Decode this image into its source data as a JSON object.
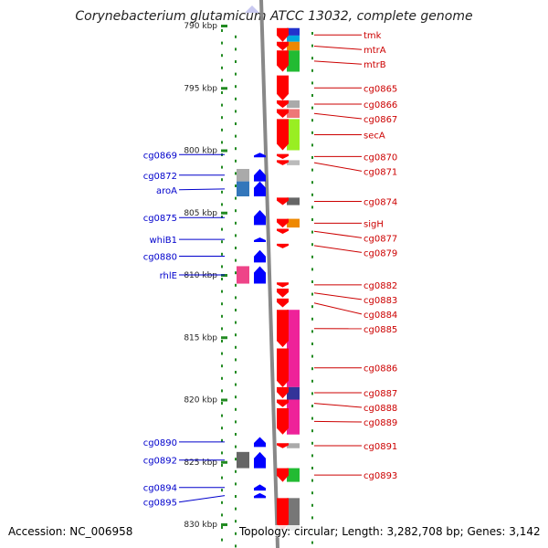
{
  "title": "Corynebacterium glutamicum ATCC 13032, complete genome",
  "footer": {
    "accession": "Accession: NC_006958",
    "summary": "Topology: circular; Length: 3,282,708 bp; Genes: 3,142"
  },
  "scale": {
    "unit": "kbp",
    "ticks": [
      {
        "label": "790 kbp",
        "kbp": 790
      },
      {
        "label": "795 kbp",
        "kbp": 795
      },
      {
        "label": "800 kbp",
        "kbp": 800
      },
      {
        "label": "805 kbp",
        "kbp": 805
      },
      {
        "label": "810 kbp",
        "kbp": 810
      },
      {
        "label": "815 kbp",
        "kbp": 815
      },
      {
        "label": "820 kbp",
        "kbp": 820
      },
      {
        "label": "825 kbp",
        "kbp": 825
      },
      {
        "label": "830 kbp",
        "kbp": 830
      }
    ]
  },
  "colors": {
    "forward_gene": "#ff0000",
    "reverse_gene": "#0000ff",
    "forward_label": "#cc0000",
    "reverse_label": "#0000cc",
    "backbone": "#888888",
    "scale_mark": "#228b22"
  },
  "genes_forward": [
    {
      "label": "tmk",
      "start": 790.2,
      "end": 791.3
    },
    {
      "label": "mtrA",
      "start": 791.3,
      "end": 792.0
    },
    {
      "label": "mtrB",
      "start": 792.0,
      "end": 793.7
    },
    {
      "label": "cg0865",
      "start": 794.0,
      "end": 796.0
    },
    {
      "label": "cg0866",
      "start": 796.0,
      "end": 796.6
    },
    {
      "label": "cg0867",
      "start": 796.7,
      "end": 797.4
    },
    {
      "label": "secA",
      "start": 797.5,
      "end": 800.0
    },
    {
      "label": "cg0870",
      "start": 800.3,
      "end": 800.7
    },
    {
      "label": "cg0871",
      "start": 800.8,
      "end": 801.2
    },
    {
      "label": "cg0874",
      "start": 803.8,
      "end": 804.4
    },
    {
      "label": "sigH",
      "start": 805.5,
      "end": 806.2
    },
    {
      "label": "cg0877",
      "start": 806.3,
      "end": 806.7
    },
    {
      "label": "cg0879",
      "start": 807.5,
      "end": 807.8
    },
    {
      "label": "cg0882",
      "start": 810.6,
      "end": 811.0
    },
    {
      "label": "cg0883",
      "start": 811.1,
      "end": 811.8
    },
    {
      "label": "cg0884",
      "start": 811.9,
      "end": 812.6
    },
    {
      "label": "cg0885",
      "start": 812.8,
      "end": 815.8
    },
    {
      "label": "cg0886",
      "start": 815.9,
      "end": 819.0
    },
    {
      "label": "cg0887",
      "start": 819.0,
      "end": 819.9
    },
    {
      "label": "cg0888",
      "start": 820.0,
      "end": 820.6
    },
    {
      "label": "cg0889",
      "start": 820.7,
      "end": 822.8
    },
    {
      "label": "cg0891",
      "start": 823.5,
      "end": 823.9
    },
    {
      "label": "cg0893",
      "start": 825.5,
      "end": 826.6
    },
    {
      "label": "",
      "start": 827.9,
      "end": 830.5
    }
  ],
  "genes_reverse": [
    {
      "label": "cg0869",
      "start": 800.2,
      "end": 800.5
    },
    {
      "label": "cg0872",
      "start": 801.5,
      "end": 802.5
    },
    {
      "label": "aroA",
      "start": 802.5,
      "end": 803.7
    },
    {
      "label": "cg0875",
      "start": 804.8,
      "end": 806.0
    },
    {
      "label": "whiB1",
      "start": 807.0,
      "end": 807.3
    },
    {
      "label": "cg0880",
      "start": 808.0,
      "end": 809.0
    },
    {
      "label": "rhlE",
      "start": 809.3,
      "end": 810.7
    },
    {
      "label": "cg0890",
      "start": 823.0,
      "end": 823.8
    },
    {
      "label": "cg0892",
      "start": 824.2,
      "end": 825.5
    },
    {
      "label": "cg0894",
      "start": 826.8,
      "end": 827.3
    },
    {
      "label": "cg0895",
      "start": 827.5,
      "end": 827.9
    }
  ],
  "feature_blocks": [
    {
      "side": "forward",
      "start": 790.2,
      "end": 790.8,
      "color": "#2233cc"
    },
    {
      "side": "forward",
      "start": 790.8,
      "end": 791.3,
      "color": "#00aadd"
    },
    {
      "side": "forward",
      "start": 791.3,
      "end": 792.0,
      "color": "#ee8800"
    },
    {
      "side": "forward",
      "start": 792.0,
      "end": 793.7,
      "color": "#22bb33"
    },
    {
      "side": "forward",
      "start": 796.0,
      "end": 796.6,
      "color": "#aaaaaa"
    },
    {
      "side": "forward",
      "start": 796.7,
      "end": 797.4,
      "color": "#ee7777"
    },
    {
      "side": "forward",
      "start": 797.5,
      "end": 800.0,
      "color": "#99ee22"
    },
    {
      "side": "forward",
      "start": 800.8,
      "end": 801.2,
      "color": "#bbbbbb"
    },
    {
      "side": "forward",
      "start": 803.8,
      "end": 804.4,
      "color": "#666666"
    },
    {
      "side": "forward",
      "start": 805.5,
      "end": 806.2,
      "color": "#ee8800"
    },
    {
      "side": "forward",
      "start": 812.8,
      "end": 819.0,
      "color": "#ee2299"
    },
    {
      "side": "forward",
      "start": 819.0,
      "end": 820.0,
      "color": "#333399"
    },
    {
      "side": "forward",
      "start": 820.0,
      "end": 822.8,
      "color": "#ee2299"
    },
    {
      "side": "forward",
      "start": 823.5,
      "end": 823.9,
      "color": "#aaaaaa"
    },
    {
      "side": "forward",
      "start": 825.5,
      "end": 826.6,
      "color": "#22bb33"
    },
    {
      "side": "forward",
      "start": 827.9,
      "end": 830.5,
      "color": "#777777"
    },
    {
      "side": "reverse",
      "start": 801.5,
      "end": 802.5,
      "color": "#aaaaaa"
    },
    {
      "side": "reverse",
      "start": 802.5,
      "end": 803.7,
      "color": "#3377bb"
    },
    {
      "side": "reverse",
      "start": 809.3,
      "end": 810.7,
      "color": "#ee4488"
    },
    {
      "side": "reverse",
      "start": 824.2,
      "end": 825.5,
      "color": "#666666"
    }
  ]
}
